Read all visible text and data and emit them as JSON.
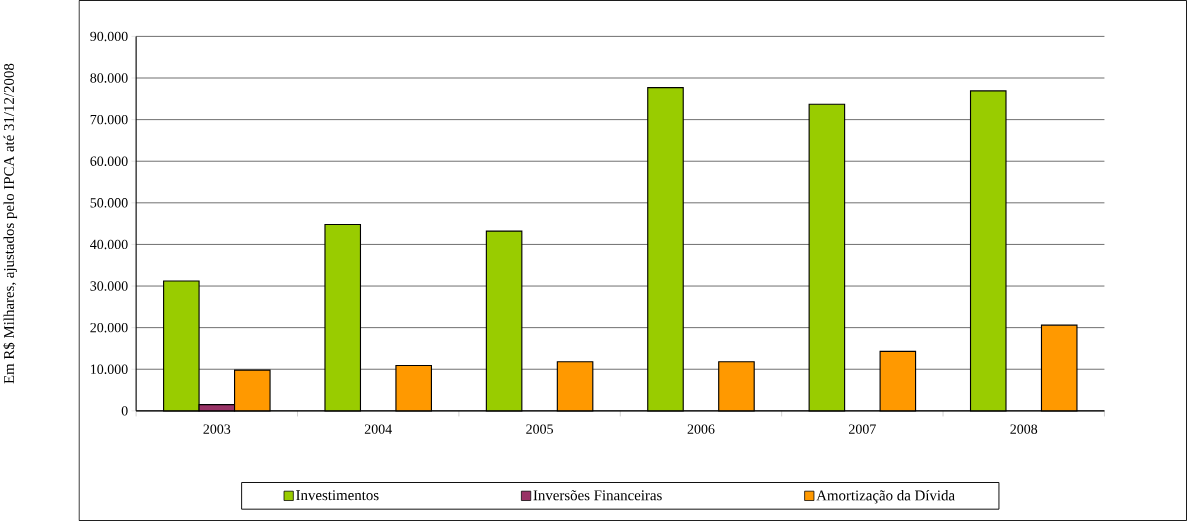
{
  "chart_data": {
    "type": "bar",
    "ylabel": "Em R$ Milhares, ajustados pelo IPCA até 31/12/2008",
    "categories": [
      "2003",
      "2004",
      "2005",
      "2006",
      "2007",
      "2008"
    ],
    "series": [
      {
        "name": "Investimentos",
        "color": "#99cc00",
        "values": [
          31200,
          44800,
          43200,
          77700,
          73700,
          76900
        ]
      },
      {
        "name": "Inversões Financeiras",
        "color": "#993366",
        "values": [
          1500,
          null,
          null,
          null,
          null,
          null
        ]
      },
      {
        "name": "Amortização da Dívida",
        "color": "#ff9900",
        "values": [
          9800,
          10900,
          11800,
          11800,
          14300,
          20600
        ]
      }
    ],
    "ylim": [
      0,
      90000
    ],
    "yticks": [
      0,
      {
        "value": 10000,
        "label": "10.000"
      },
      {
        "value": 20000,
        "label": "20.000"
      },
      {
        "value": 30000,
        "label": "30.000"
      },
      {
        "value": 40000,
        "label": "40.000"
      },
      {
        "value": 50000,
        "label": "50.000"
      },
      {
        "value": 60000,
        "label": "60.000"
      },
      {
        "value": 70000,
        "label": "70.000"
      },
      {
        "value": 80000,
        "label": "80.000"
      },
      {
        "value": 90000,
        "label": "90.000"
      }
    ],
    "grid": "y",
    "legend": "bottom"
  }
}
